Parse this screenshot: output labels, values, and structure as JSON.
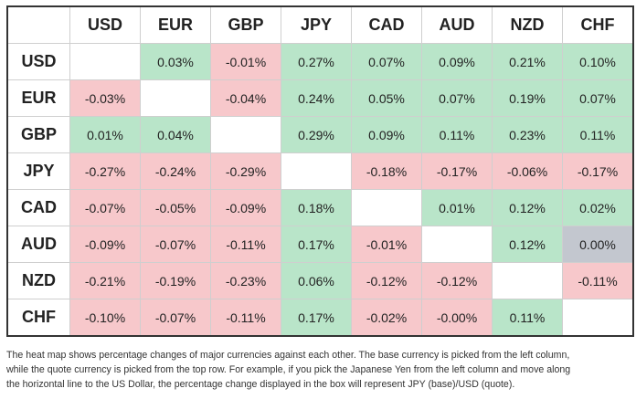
{
  "table": {
    "columns": [
      "USD",
      "EUR",
      "GBP",
      "JPY",
      "CAD",
      "AUD",
      "NZD",
      "CHF"
    ],
    "rows": [
      {
        "label": "USD",
        "cells": [
          null,
          "0.03%",
          "-0.01%",
          "0.27%",
          "0.07%",
          "0.09%",
          "0.21%",
          "0.10%"
        ]
      },
      {
        "label": "EUR",
        "cells": [
          "-0.03%",
          null,
          "-0.04%",
          "0.24%",
          "0.05%",
          "0.07%",
          "0.19%",
          "0.07%"
        ]
      },
      {
        "label": "GBP",
        "cells": [
          "0.01%",
          "0.04%",
          null,
          "0.29%",
          "0.09%",
          "0.11%",
          "0.23%",
          "0.11%"
        ]
      },
      {
        "label": "JPY",
        "cells": [
          "-0.27%",
          "-0.24%",
          "-0.29%",
          null,
          "-0.18%",
          "-0.17%",
          "-0.06%",
          "-0.17%"
        ]
      },
      {
        "label": "CAD",
        "cells": [
          "-0.07%",
          "-0.05%",
          "-0.09%",
          "0.18%",
          null,
          "0.01%",
          "0.12%",
          "0.02%"
        ]
      },
      {
        "label": "AUD",
        "cells": [
          "-0.09%",
          "-0.07%",
          "-0.11%",
          "0.17%",
          "-0.01%",
          null,
          "0.12%",
          "0.00%"
        ]
      },
      {
        "label": "NZD",
        "cells": [
          "-0.21%",
          "-0.19%",
          "-0.23%",
          "0.06%",
          "-0.12%",
          "-0.12%",
          null,
          "-0.11%"
        ]
      },
      {
        "label": "CHF",
        "cells": [
          "-0.10%",
          "-0.07%",
          "-0.11%",
          "0.17%",
          "-0.02%",
          "-0.00%",
          "0.11%",
          null
        ]
      }
    ]
  },
  "note": [
    "The heat map shows percentage changes of major currencies against each other. The base currency is picked from the left column,",
    "while the quote currency is picked from the top row. For example, if you pick the Japanese Yen from the left column and move along",
    "the horizontal line to the US Dollar, the percentage change displayed in the box will represent JPY (base)/USD (quote)."
  ]
}
